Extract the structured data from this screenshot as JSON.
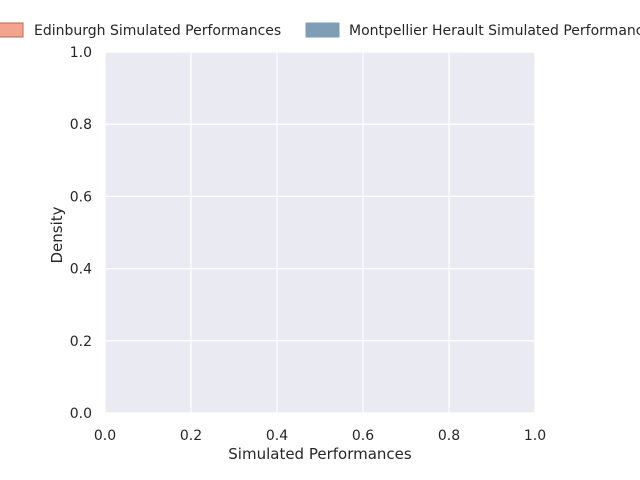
{
  "chart_data": {
    "type": "area",
    "title": "",
    "xlabel": "Simulated Performances",
    "ylabel": "Density",
    "xlim": [
      0.0,
      1.0
    ],
    "ylim": [
      0.0,
      1.0
    ],
    "xticks": [
      "0.0",
      "0.2",
      "0.4",
      "0.6",
      "0.8",
      "1.0"
    ],
    "yticks": [
      "0.0",
      "0.2",
      "0.4",
      "0.6",
      "0.8",
      "1.0"
    ],
    "grid": true,
    "legend_position": "top, above plot",
    "series": [
      {
        "name": "Edinburgh Simulated Performances",
        "color": "#f4a38f",
        "edge_color": "#b36a5a",
        "values": []
      },
      {
        "name": "Montpellier Herault Simulated Performances",
        "color": "#7f9db4",
        "edge_color": "#7f9db4",
        "values": []
      }
    ],
    "background_color": "#eaeaf2",
    "grid_color": "#ffffff"
  }
}
